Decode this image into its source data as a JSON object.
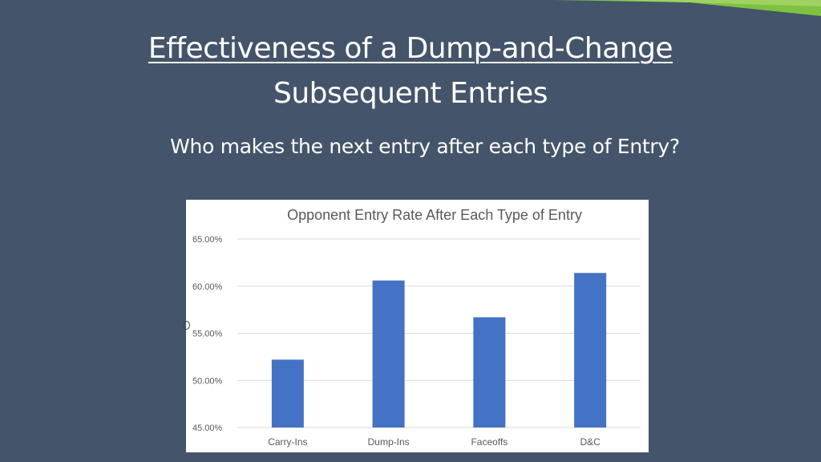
{
  "slide": {
    "title_line1": "Effectiveness of a Dump-and-Change",
    "title_line2": "Subsequent Entries",
    "subtitle": "Who makes the next entry after each type of Entry?"
  },
  "colors": {
    "background": "#44546a",
    "bar": "#4472c4",
    "accent_green": "#7fc241",
    "grid": "#d9d9d9"
  },
  "chart_data": {
    "type": "bar",
    "title": "Opponent Entry Rate After Each Type of Entry",
    "categories": [
      "Carry-Ins",
      "Dump-Ins",
      "Faceoffs",
      "D&C"
    ],
    "values": [
      52.2,
      60.6,
      56.7,
      61.4
    ],
    "ylim": [
      45,
      65
    ],
    "yticks": [
      45,
      50,
      55,
      60,
      65
    ],
    "ytick_labels": [
      "45.00%",
      "50.00%",
      "55.00%",
      "60.00%",
      "65.00%"
    ],
    "xlabel": "",
    "ylabel": "",
    "grid": true,
    "legend": "none"
  }
}
